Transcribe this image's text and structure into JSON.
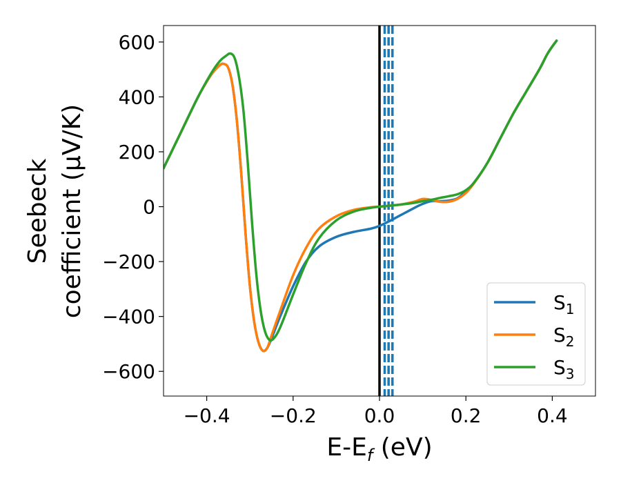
{
  "chart_data": {
    "type": "line",
    "xlabel": {
      "base": "E-E",
      "sub": "f",
      "rest": " (eV)"
    },
    "ylabel": {
      "line1": "Seebeck",
      "line2": "coefficient  (μV/K)"
    },
    "xlim": [
      -0.5,
      0.5
    ],
    "ylim": [
      -690,
      660
    ],
    "xticks": [
      -0.4,
      -0.2,
      0.0,
      0.2,
      0.4
    ],
    "xtick_labels": [
      "−0.4",
      "−0.2",
      "0.0",
      "0.2",
      "0.4"
    ],
    "yticks": [
      -600,
      -400,
      -200,
      0,
      200,
      400,
      600
    ],
    "ytick_labels": [
      "−600",
      "−400",
      "−200",
      "0",
      "200",
      "400",
      "600"
    ],
    "grid": false,
    "legend_position": "bottom-right",
    "vertical_lines": [
      {
        "x": 0.0,
        "color": "#000000",
        "style": "solid"
      },
      {
        "x": 0.012,
        "color": "#1f77b4",
        "style": "dashed"
      },
      {
        "x": 0.021,
        "color": "#1f77b4",
        "style": "dashed"
      },
      {
        "x": 0.03,
        "color": "#1f77b4",
        "style": "dashed"
      }
    ],
    "series": [
      {
        "name": "S",
        "sub": "1",
        "color": "#1f77b4",
        "points": [
          [
            -0.5,
            140
          ],
          [
            -0.46,
            270
          ],
          [
            -0.42,
            400
          ],
          [
            -0.39,
            480
          ],
          [
            -0.37,
            515
          ],
          [
            -0.36,
            520
          ],
          [
            -0.35,
            505
          ],
          [
            -0.34,
            440
          ],
          [
            -0.33,
            310
          ],
          [
            -0.32,
            120
          ],
          [
            -0.31,
            -100
          ],
          [
            -0.3,
            -290
          ],
          [
            -0.29,
            -420
          ],
          [
            -0.28,
            -495
          ],
          [
            -0.27,
            -525
          ],
          [
            -0.26,
            -515
          ],
          [
            -0.25,
            -480
          ],
          [
            -0.23,
            -400
          ],
          [
            -0.2,
            -290
          ],
          [
            -0.17,
            -200
          ],
          [
            -0.14,
            -145
          ],
          [
            -0.1,
            -110
          ],
          [
            -0.06,
            -92
          ],
          [
            -0.02,
            -80
          ],
          [
            0.0,
            -70
          ],
          [
            0.02,
            -55
          ],
          [
            0.05,
            -30
          ],
          [
            0.08,
            -5
          ],
          [
            0.1,
            10
          ],
          [
            0.12,
            20
          ],
          [
            0.14,
            20
          ],
          [
            0.16,
            22
          ],
          [
            0.18,
            30
          ],
          [
            0.2,
            55
          ],
          [
            0.22,
            90
          ],
          [
            0.25,
            160
          ],
          [
            0.28,
            250
          ],
          [
            0.31,
            340
          ],
          [
            0.34,
            420
          ],
          [
            0.37,
            500
          ],
          [
            0.39,
            560
          ],
          [
            0.41,
            605
          ]
        ]
      },
      {
        "name": "S",
        "sub": "2",
        "color": "#ff7f0e",
        "points": [
          [
            -0.5,
            140
          ],
          [
            -0.46,
            270
          ],
          [
            -0.42,
            400
          ],
          [
            -0.39,
            480
          ],
          [
            -0.37,
            515
          ],
          [
            -0.36,
            520
          ],
          [
            -0.35,
            505
          ],
          [
            -0.34,
            440
          ],
          [
            -0.33,
            310
          ],
          [
            -0.32,
            120
          ],
          [
            -0.31,
            -100
          ],
          [
            -0.3,
            -290
          ],
          [
            -0.29,
            -420
          ],
          [
            -0.28,
            -495
          ],
          [
            -0.27,
            -525
          ],
          [
            -0.26,
            -515
          ],
          [
            -0.25,
            -470
          ],
          [
            -0.23,
            -380
          ],
          [
            -0.2,
            -250
          ],
          [
            -0.17,
            -150
          ],
          [
            -0.14,
            -80
          ],
          [
            -0.1,
            -35
          ],
          [
            -0.06,
            -12
          ],
          [
            -0.02,
            -2
          ],
          [
            0.0,
            0
          ],
          [
            0.02,
            3
          ],
          [
            0.05,
            8
          ],
          [
            0.08,
            18
          ],
          [
            0.1,
            28
          ],
          [
            0.12,
            25
          ],
          [
            0.14,
            18
          ],
          [
            0.16,
            18
          ],
          [
            0.18,
            28
          ],
          [
            0.2,
            50
          ],
          [
            0.22,
            88
          ],
          [
            0.25,
            160
          ],
          [
            0.28,
            250
          ],
          [
            0.31,
            340
          ],
          [
            0.34,
            420
          ],
          [
            0.37,
            500
          ],
          [
            0.39,
            560
          ],
          [
            0.41,
            605
          ]
        ]
      },
      {
        "name": "S",
        "sub": "3",
        "color": "#2ca02c",
        "points": [
          [
            -0.5,
            140
          ],
          [
            -0.46,
            270
          ],
          [
            -0.42,
            400
          ],
          [
            -0.39,
            485
          ],
          [
            -0.37,
            530
          ],
          [
            -0.355,
            550
          ],
          [
            -0.345,
            558
          ],
          [
            -0.335,
            540
          ],
          [
            -0.325,
            470
          ],
          [
            -0.315,
            350
          ],
          [
            -0.305,
            160
          ],
          [
            -0.295,
            -60
          ],
          [
            -0.285,
            -250
          ],
          [
            -0.275,
            -380
          ],
          [
            -0.265,
            -455
          ],
          [
            -0.255,
            -485
          ],
          [
            -0.245,
            -480
          ],
          [
            -0.23,
            -440
          ],
          [
            -0.2,
            -320
          ],
          [
            -0.17,
            -205
          ],
          [
            -0.14,
            -115
          ],
          [
            -0.1,
            -50
          ],
          [
            -0.06,
            -18
          ],
          [
            -0.02,
            -4
          ],
          [
            0.0,
            0
          ],
          [
            0.02,
            3
          ],
          [
            0.05,
            8
          ],
          [
            0.08,
            14
          ],
          [
            0.1,
            20
          ],
          [
            0.12,
            25
          ],
          [
            0.14,
            32
          ],
          [
            0.16,
            38
          ],
          [
            0.18,
            45
          ],
          [
            0.2,
            60
          ],
          [
            0.22,
            90
          ],
          [
            0.25,
            160
          ],
          [
            0.28,
            250
          ],
          [
            0.31,
            340
          ],
          [
            0.34,
            420
          ],
          [
            0.37,
            500
          ],
          [
            0.39,
            560
          ],
          [
            0.41,
            605
          ]
        ]
      }
    ]
  }
}
